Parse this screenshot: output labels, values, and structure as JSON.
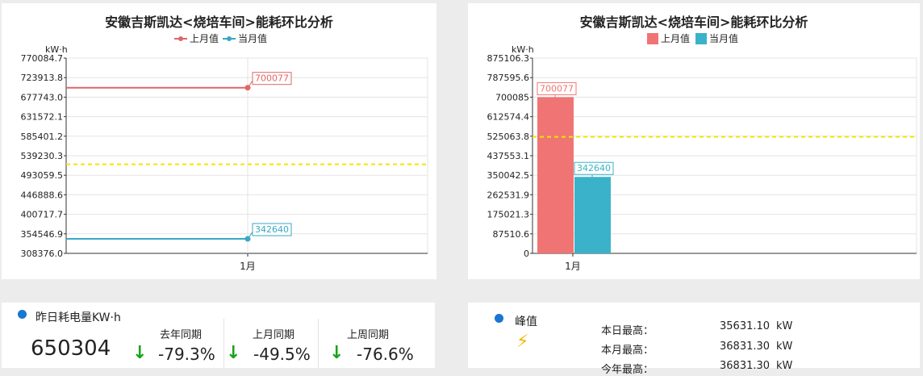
{
  "chart_data": [
    {
      "type": "line",
      "title": "安徽吉斯凯达<烧培车间>能耗环比分析",
      "ylabel": "kW·h",
      "categories": [
        "1月"
      ],
      "yticks": [
        "770084.7",
        "723913.8",
        "677743.0",
        "631572.1",
        "585401.2",
        "539230.3",
        "493059.5",
        "446888.6",
        "400717.7",
        "354546.9",
        "308376.0"
      ],
      "ylim": [
        308376.0,
        770084.7
      ],
      "series": [
        {
          "name": "上月值",
          "values": [
            700077
          ],
          "color": "#e06666"
        },
        {
          "name": "当月值",
          "values": [
            342640
          ],
          "color": "#3aa7c4"
        }
      ],
      "reference_line": 519000,
      "reference_color": "#f2e600",
      "data_labels": [
        "700077",
        "342640"
      ]
    },
    {
      "type": "bar",
      "title": "安徽吉斯凯达<烧培车间>能耗环比分析",
      "ylabel": "kW·h",
      "categories": [
        "1月"
      ],
      "yticks": [
        "875106.3",
        "787595.6",
        "700085",
        "612574.4",
        "525063.8",
        "437553.1",
        "350042.5",
        "262531.9",
        "175021.3",
        "87510.6",
        "0"
      ],
      "ylim": [
        0,
        875106.3
      ],
      "series": [
        {
          "name": "上月值",
          "values": [
            700077
          ],
          "color": "#f07474"
        },
        {
          "name": "当月值",
          "values": [
            342640
          ],
          "color": "#3ab2c9"
        }
      ],
      "reference_line": 522000,
      "reference_color": "#f2e600",
      "data_labels": [
        "700077",
        "342640"
      ]
    }
  ],
  "yesterday": {
    "label": "昨日耗电量KW·h",
    "value": "650304",
    "comparisons": [
      {
        "label": "去年同期",
        "value": "-79.3%"
      },
      {
        "label": "上月同期",
        "value": "-49.5%"
      },
      {
        "label": "上周同期",
        "value": "-76.6%"
      }
    ],
    "arrow": "↓"
  },
  "peak": {
    "label": "峰值",
    "icon": "⚡",
    "rows": [
      {
        "label": "本日最高：",
        "value": "35631.10",
        "unit": "kW"
      },
      {
        "label": "本月最高：",
        "value": "36831.30",
        "unit": "kW"
      },
      {
        "label": "今年最高：",
        "value": "36831.30",
        "unit": "kW"
      }
    ]
  }
}
